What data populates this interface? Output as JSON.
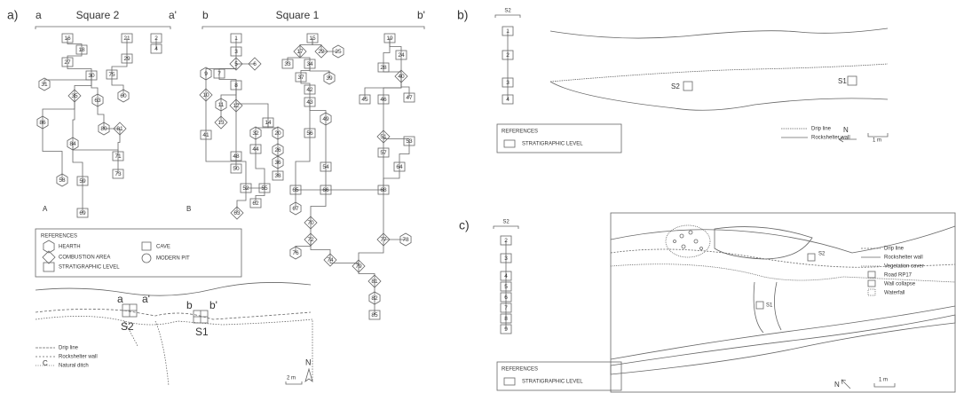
{
  "panel_a": {
    "label": "a)",
    "square_2": {
      "left": "a",
      "title": "Square 2",
      "right": "a'",
      "tag": "A",
      "nodes": [
        "16",
        "18",
        "27",
        "21",
        "29",
        "2",
        "4",
        "30",
        "75",
        "31",
        "35",
        "60",
        "63",
        "86",
        "80",
        "81",
        "84",
        "71",
        "73",
        "58",
        "59",
        "69"
      ]
    },
    "square_1": {
      "left": "b",
      "title": "Square 1",
      "right": "b'",
      "tag": "B",
      "nodes": [
        "1",
        "3",
        "5",
        "6",
        "9",
        "7",
        "8",
        "10",
        "11",
        "12",
        "13",
        "41",
        "14",
        "32",
        "20",
        "44",
        "26",
        "36",
        "48",
        "50",
        "38",
        "52",
        "55",
        "62",
        "63",
        "15",
        "17",
        "22",
        "25",
        "33",
        "34",
        "37",
        "39",
        "42",
        "43",
        "49",
        "56",
        "54",
        "19",
        "24",
        "28",
        "40",
        "45",
        "46",
        "47",
        "51",
        "53",
        "57",
        "64",
        "65",
        "66",
        "68",
        "67",
        "70",
        "72",
        "76",
        "74",
        "77",
        "78",
        "79",
        "81",
        "82",
        "85"
      ]
    },
    "references": {
      "title": "REFERENCES",
      "items": [
        "HEARTH",
        "COMBUSTION AREA",
        "STRATIGRAPHIC LEVEL",
        "CAVE",
        "MODERN PIT"
      ]
    },
    "map": {
      "tag": "C",
      "labels": [
        "a",
        "a'",
        "b",
        "b'"
      ],
      "sites": [
        "S2",
        "S1"
      ],
      "legend": [
        "Drip line",
        "Rockshelter wall",
        "Natural ditch"
      ],
      "scale": "2 m",
      "north": "N"
    }
  },
  "panel_b": {
    "label": "b)",
    "column": {
      "title": "S2",
      "levels": [
        "1",
        "2",
        "3",
        "4"
      ]
    },
    "references": {
      "title": "REFERENCES",
      "items": [
        "STRATIGRAPHIC LEVEL"
      ]
    },
    "map": {
      "sites": [
        "S2",
        "S1"
      ],
      "legend": [
        "Drip line",
        "Rockshelter wall"
      ],
      "north": "N",
      "scale": "1 m"
    }
  },
  "panel_c": {
    "label": "c)",
    "column": {
      "title": "S2",
      "levels": [
        "2",
        "3",
        "4",
        "5",
        "6",
        "7",
        "8",
        "9"
      ]
    },
    "references": {
      "title": "REFERENCES",
      "items": [
        "STRATIGRAPHIC LEVEL"
      ]
    },
    "map": {
      "sites": [
        "S2",
        "S1"
      ],
      "legend": [
        "Drip line",
        "Rockshelter wall",
        "Vegetation cover",
        "Road RP17",
        "Wall collapse",
        "Waterfall"
      ],
      "north": "N",
      "scale": "1 m"
    }
  }
}
